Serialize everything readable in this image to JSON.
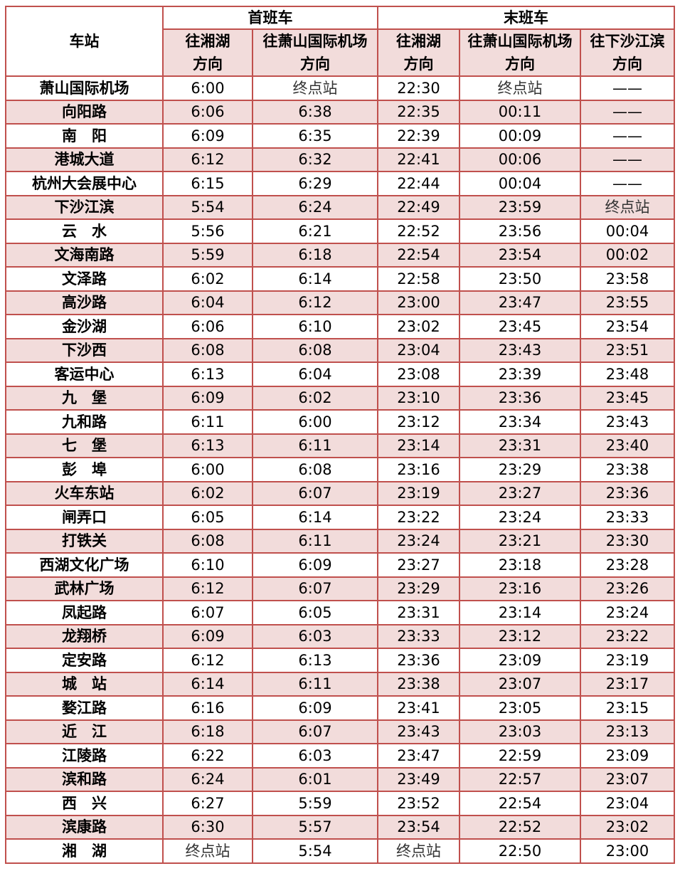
{
  "header": {
    "station": "车站",
    "first_train": "首班车",
    "last_train": "末班车",
    "columns": [
      "往湘湖\n方向",
      "往萧山国际机场\n方向",
      "往湘湖\n方向",
      "往萧山国际机场\n方向",
      "往下沙江滨\n方向"
    ]
  },
  "colors": {
    "border": "#c0504d",
    "stripe": "#f2dcdb"
  },
  "terminal_label": "终点站",
  "rows": [
    [
      "萧山国际机场",
      "6:00",
      "终点站",
      "22:30",
      "终点站",
      "——"
    ],
    [
      "向阳路",
      "6:06",
      "6:38",
      "22:35",
      "00:11",
      "——"
    ],
    [
      "南　阳",
      "6:09",
      "6:35",
      "22:39",
      "00:09",
      "——"
    ],
    [
      "港城大道",
      "6:12",
      "6:32",
      "22:41",
      "00:06",
      "——"
    ],
    [
      "杭州大会展中心",
      "6:15",
      "6:29",
      "22:44",
      "00:04",
      "——"
    ],
    [
      "下沙江滨",
      "5:54",
      "6:24",
      "22:49",
      "23:59",
      "终点站"
    ],
    [
      "云　水",
      "5:56",
      "6:21",
      "22:52",
      "23:56",
      "00:04"
    ],
    [
      "文海南路",
      "5:59",
      "6:18",
      "22:54",
      "23:54",
      "00:02"
    ],
    [
      "文泽路",
      "6:02",
      "6:14",
      "22:58",
      "23:50",
      "23:58"
    ],
    [
      "高沙路",
      "6:04",
      "6:12",
      "23:00",
      "23:47",
      "23:55"
    ],
    [
      "金沙湖",
      "6:06",
      "6:10",
      "23:02",
      "23:45",
      "23:54"
    ],
    [
      "下沙西",
      "6:08",
      "6:08",
      "23:04",
      "23:43",
      "23:51"
    ],
    [
      "客运中心",
      "6:13",
      "6:04",
      "23:08",
      "23:39",
      "23:48"
    ],
    [
      "九　堡",
      "6:09",
      "6:02",
      "23:10",
      "23:36",
      "23:45"
    ],
    [
      "九和路",
      "6:11",
      "6:00",
      "23:12",
      "23:34",
      "23:43"
    ],
    [
      "七　堡",
      "6:13",
      "6:11",
      "23:14",
      "23:31",
      "23:40"
    ],
    [
      "彭　埠",
      "6:00",
      "6:08",
      "23:16",
      "23:29",
      "23:38"
    ],
    [
      "火车东站",
      "6:02",
      "6:07",
      "23:19",
      "23:27",
      "23:36"
    ],
    [
      "闸弄口",
      "6:05",
      "6:14",
      "23:22",
      "23:24",
      "23:33"
    ],
    [
      "打铁关",
      "6:08",
      "6:11",
      "23:24",
      "23:21",
      "23:30"
    ],
    [
      "西湖文化广场",
      "6:10",
      "6:09",
      "23:27",
      "23:18",
      "23:28"
    ],
    [
      "武林广场",
      "6:12",
      "6:07",
      "23:29",
      "23:16",
      "23:26"
    ],
    [
      "凤起路",
      "6:07",
      "6:05",
      "23:31",
      "23:14",
      "23:24"
    ],
    [
      "龙翔桥",
      "6:09",
      "6:03",
      "23:33",
      "23:12",
      "23:22"
    ],
    [
      "定安路",
      "6:12",
      "6:13",
      "23:36",
      "23:09",
      "23:19"
    ],
    [
      "城　站",
      "6:14",
      "6:11",
      "23:38",
      "23:07",
      "23:17"
    ],
    [
      "婺江路",
      "6:16",
      "6:09",
      "23:41",
      "23:05",
      "23:15"
    ],
    [
      "近　江",
      "6:18",
      "6:07",
      "23:43",
      "23:03",
      "23:13"
    ],
    [
      "江陵路",
      "6:22",
      "6:03",
      "23:47",
      "22:59",
      "23:09"
    ],
    [
      "滨和路",
      "6:24",
      "6:01",
      "23:49",
      "22:57",
      "23:07"
    ],
    [
      "西　兴",
      "6:27",
      "5:59",
      "23:52",
      "22:54",
      "23:04"
    ],
    [
      "滨康路",
      "6:30",
      "5:57",
      "23:54",
      "22:52",
      "23:02"
    ],
    [
      "湘　湖",
      "终点站",
      "5:54",
      "终点站",
      "22:50",
      "23:00"
    ]
  ]
}
